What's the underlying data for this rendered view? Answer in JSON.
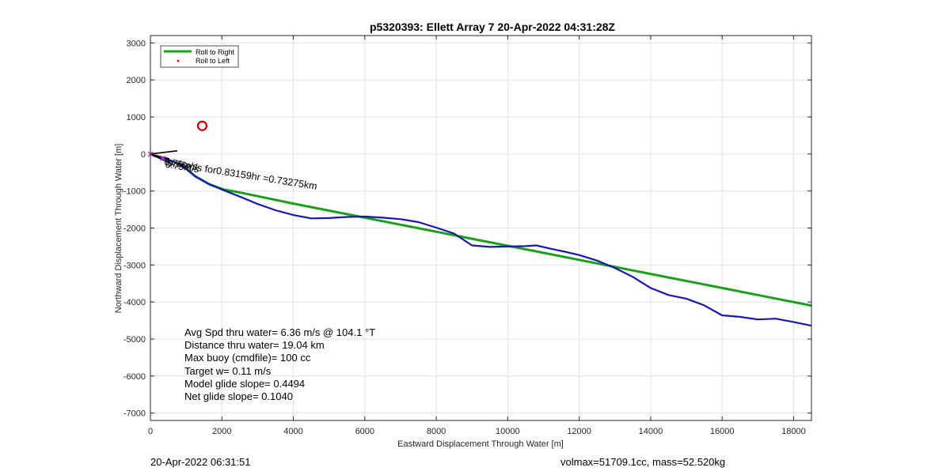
{
  "chart_data": {
    "type": "line",
    "title": "p5320393: Ellett Array 7 20-Apr-2022 04:31:28Z",
    "xlabel": "Eastward Displacement Through Water [m]",
    "ylabel": "Northward Displacement Through Water [m]",
    "xlim": [
      0,
      18500
    ],
    "ylim": [
      -7200,
      3200
    ],
    "xticks": [
      0,
      2000,
      4000,
      6000,
      8000,
      10000,
      12000,
      14000,
      16000,
      18000
    ],
    "yticks": [
      3000,
      2000,
      1000,
      0,
      -1000,
      -2000,
      -3000,
      -4000,
      -5000,
      -6000,
      -7000
    ],
    "grid": true,
    "legend_position": "top-left",
    "series": [
      {
        "name": "Roll to Right",
        "color": "#1aa01a",
        "x": [
          0,
          120,
          280,
          450,
          650,
          900,
          1250,
          1650,
          2050,
          2400,
          3000,
          4000,
          5000,
          6000,
          7000,
          8000,
          9000,
          10000,
          11000,
          12000,
          13000,
          14000,
          15000,
          16000,
          17000,
          18000,
          18500
        ],
        "y": [
          0,
          -50,
          -100,
          -150,
          -210,
          -320,
          -600,
          -820,
          -960,
          -1020,
          -1140,
          -1340,
          -1530,
          -1720,
          -1910,
          -2100,
          -2290,
          -2480,
          -2670,
          -2860,
          -3050,
          -3240,
          -3430,
          -3620,
          -3810,
          -4000,
          -4095
        ]
      },
      {
        "name": "Roll to Left",
        "color": "#cc0000",
        "x": [],
        "y": []
      },
      {
        "name": "",
        "color": "#1717b0",
        "x": [
          0,
          120,
          280,
          450,
          650,
          900,
          1250,
          1650,
          2050,
          2500,
          3000,
          3500,
          4000,
          4500,
          5000,
          5500,
          6000,
          6500,
          7000,
          7500,
          8000,
          8500,
          9000,
          9500,
          10000,
          10500,
          10800,
          11200,
          11600,
          12000,
          12500,
          13000,
          13500,
          14000,
          14500,
          15000,
          15500,
          16000,
          16500,
          17000,
          17500,
          18000,
          18500
        ],
        "y": [
          0,
          -50,
          -100,
          -150,
          -210,
          -320,
          -600,
          -820,
          -980,
          -1150,
          -1350,
          -1520,
          -1650,
          -1740,
          -1730,
          -1700,
          -1690,
          -1720,
          -1760,
          -1840,
          -1990,
          -2150,
          -2470,
          -2510,
          -2500,
          -2490,
          -2470,
          -2560,
          -2640,
          -2730,
          -2880,
          -3080,
          -3320,
          -3620,
          -3810,
          -3910,
          -4090,
          -4360,
          -4400,
          -4470,
          -4450,
          -4540,
          -4640
        ]
      }
    ],
    "markers": [
      {
        "name": "circle",
        "color": "#cc0000",
        "x": 1450,
        "y": 760
      },
      {
        "name": "",
        "color": "#cc33cc",
        "x": 0,
        "y": 0
      },
      {
        "name": "",
        "color": "#cc33cc",
        "x": 350,
        "y": -120
      }
    ],
    "annotations": [
      "0.76m/s",
      "0.75m/s",
      "0.76m/s for0.83159hr =0.73275km"
    ],
    "info_box": [
      "Avg Spd thru water=  6.36 m/s @ 104.1 °T",
      "Distance thru water= 19.04 km",
      "Max buoy (cmdfile)= 100 cc",
      "Target w= 0.11 m/s",
      "Model glide slope= 0.4494",
      "Net glide slope= 0.1040"
    ]
  },
  "footer": {
    "left": "20-Apr-2022 06:31:51",
    "right": "volmax=51709.1cc, mass=52.520kg"
  }
}
